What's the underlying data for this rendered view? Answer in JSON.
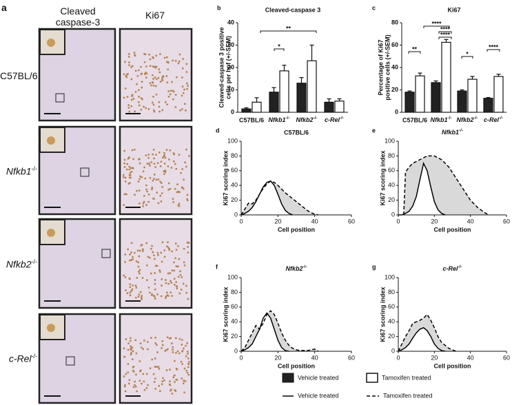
{
  "micrographs": {
    "panel": "a",
    "columns": [
      "Cleaved caspase-3",
      "Ki67"
    ],
    "rows": [
      "C57BL/6",
      "Nfkb1-/-",
      "Nfkb2-/-",
      "c-Rel-/-"
    ]
  },
  "chart_data": [
    {
      "type": "bar",
      "panel": "b",
      "title": "Cleaved-caspase 3",
      "y_label": [
        "Cleaved-caspase 3 positive",
        "cells per hpf (+/-SEM)"
      ],
      "categories": [
        "C57BL/6",
        "Nfkb1-/-",
        "Nfkb2-/-",
        "c-Rel-/-"
      ],
      "series": [
        {
          "name": "Vehicle treated",
          "color": "#222222",
          "values": [
            1.5,
            9,
            13,
            4.5
          ],
          "errors": [
            0.5,
            2,
            2.5,
            1.5
          ]
        },
        {
          "name": "Tamoxifen treated",
          "color": "#ffffff",
          "values": [
            4.5,
            18.5,
            23,
            5
          ],
          "errors": [
            2,
            2.5,
            7,
            1
          ]
        }
      ],
      "ylim": [
        0,
        40
      ],
      "yticks": [
        0,
        10,
        20,
        30,
        40
      ],
      "annotations": [
        "*",
        "**"
      ]
    },
    {
      "type": "bar",
      "panel": "c",
      "title": "Ki67",
      "y_label": [
        "Percentage of Ki67",
        "positive cells (+/-SEM)"
      ],
      "categories": [
        "C57BL/6",
        "Nfkb1-/-",
        "Nfkb2-/-",
        "c-Rel-/-"
      ],
      "series": [
        {
          "name": "Vehicle treated",
          "color": "#222222",
          "values": [
            18,
            26.5,
            19,
            12.5
          ],
          "errors": [
            1,
            1.5,
            1,
            0.7
          ]
        },
        {
          "name": "Tamoxifen treated",
          "color": "#ffffff",
          "values": [
            32.5,
            62.5,
            29.5,
            32
          ],
          "errors": [
            2.5,
            2.5,
            2.5,
            2
          ]
        }
      ],
      "ylim": [
        0,
        80
      ],
      "yticks": [
        0,
        20,
        40,
        60,
        80
      ],
      "annotations": [
        "**",
        "****",
        "****",
        "****",
        "*",
        "****"
      ]
    },
    {
      "type": "line",
      "panel": "d",
      "title": "C57BL/6",
      "x_label": "Cell position",
      "y_label": "Ki67 scoring index",
      "fill": "#d9d9d9",
      "series": [
        {
          "name": "Vehicle treated",
          "color": "#000000",
          "dash": false,
          "x": [
            0,
            2,
            4,
            6,
            8,
            10,
            12,
            14,
            16,
            18,
            20,
            22,
            24,
            26,
            28
          ],
          "values": [
            0,
            2,
            5,
            10,
            18,
            28,
            38,
            44,
            46,
            40,
            28,
            15,
            6,
            2,
            0
          ]
        },
        {
          "name": "Tamoxifen treated",
          "color": "#000000",
          "dash": true,
          "x": [
            0,
            2,
            4,
            6,
            8,
            10,
            12,
            14,
            16,
            18,
            20,
            22,
            24,
            26,
            28,
            30,
            32,
            34,
            36,
            38,
            40,
            42
          ],
          "values": [
            0,
            8,
            16,
            15,
            20,
            28,
            36,
            42,
            46,
            44,
            40,
            35,
            30,
            26,
            22,
            18,
            14,
            10,
            6,
            3,
            1,
            0
          ]
        }
      ],
      "xlim": [
        0,
        60
      ],
      "xticks": [
        0,
        20,
        40,
        60
      ],
      "ylim": [
        0,
        100
      ],
      "yticks": [
        0,
        20,
        40,
        60,
        80,
        100
      ]
    },
    {
      "type": "line",
      "panel": "e",
      "title": "Nfkb1-/-",
      "x_label": "Cell position",
      "y_label": "Ki67 scoring index",
      "fill": "#d9d9d9",
      "series": [
        {
          "name": "Vehicle treated",
          "color": "#000000",
          "dash": false,
          "x": [
            0,
            2,
            4,
            6,
            8,
            10,
            12,
            14,
            16,
            18,
            20,
            22,
            24,
            26
          ],
          "values": [
            0,
            0,
            2,
            5,
            12,
            25,
            48,
            70,
            60,
            38,
            18,
            7,
            2,
            0
          ]
        },
        {
          "name": "Tamoxifen treated",
          "color": "#000000",
          "dash": true,
          "x": [
            3,
            4,
            6,
            8,
            12,
            16,
            20,
            24,
            28,
            32,
            36,
            40,
            44,
            48,
            50
          ],
          "values": [
            0,
            58,
            65,
            70,
            75,
            80,
            80,
            75,
            65,
            50,
            35,
            20,
            10,
            3,
            0
          ]
        }
      ],
      "xlim": [
        0,
        60
      ],
      "xticks": [
        0,
        20,
        40,
        60
      ],
      "ylim": [
        0,
        100
      ],
      "yticks": [
        0,
        20,
        40,
        60,
        80,
        100
      ]
    },
    {
      "type": "line",
      "panel": "f",
      "title": "Nfkb2-/-",
      "x_label": "Cell position",
      "y_label": "Ki67 scoring index",
      "fill": "#d9d9d9",
      "series": [
        {
          "name": "Vehicle treated",
          "color": "#000000",
          "dash": false,
          "x": [
            0,
            2,
            4,
            6,
            8,
            10,
            12,
            14,
            16,
            18,
            20,
            22,
            24,
            26
          ],
          "values": [
            0,
            2,
            5,
            10,
            20,
            30,
            45,
            52,
            45,
            30,
            15,
            5,
            1,
            0
          ]
        },
        {
          "name": "Tamoxifen treated",
          "color": "#000000",
          "dash": true,
          "x": [
            0,
            2,
            4,
            6,
            8,
            10,
            12,
            14,
            16,
            18,
            20,
            22,
            24,
            26,
            28,
            30,
            32,
            36,
            40,
            42
          ],
          "values": [
            0,
            5,
            15,
            25,
            35,
            30,
            38,
            50,
            55,
            50,
            38,
            25,
            15,
            8,
            4,
            2,
            1,
            1,
            3,
            0
          ]
        }
      ],
      "xlim": [
        0,
        60
      ],
      "xticks": [
        0,
        20,
        40,
        60
      ],
      "ylim": [
        0,
        100
      ],
      "yticks": [
        0,
        20,
        40,
        60,
        80,
        100
      ]
    },
    {
      "type": "line",
      "panel": "g",
      "title": "c-Rel-/-",
      "x_label": "Cell position",
      "y_label": "Ki67 scoring index",
      "fill": "#d9d9d9",
      "series": [
        {
          "name": "Vehicle treated",
          "color": "#000000",
          "dash": false,
          "x": [
            0,
            2,
            4,
            6,
            8,
            10,
            12,
            14,
            16,
            18,
            20,
            22,
            24,
            26
          ],
          "values": [
            0,
            2,
            5,
            10,
            18,
            25,
            30,
            32,
            28,
            20,
            10,
            4,
            1,
            0
          ]
        },
        {
          "name": "Tamoxifen treated",
          "color": "#000000",
          "dash": true,
          "x": [
            0,
            2,
            4,
            6,
            8,
            10,
            12,
            14,
            16,
            18,
            20,
            22,
            24,
            26,
            28,
            30,
            32
          ],
          "values": [
            0,
            10,
            20,
            28,
            38,
            40,
            42,
            45,
            50,
            42,
            32,
            20,
            12,
            8,
            4,
            2,
            0
          ]
        }
      ],
      "xlim": [
        0,
        60
      ],
      "xticks": [
        0,
        20,
        40,
        60
      ],
      "ylim": [
        0,
        100
      ],
      "yticks": [
        0,
        20,
        40,
        60,
        80,
        100
      ]
    }
  ]
}
